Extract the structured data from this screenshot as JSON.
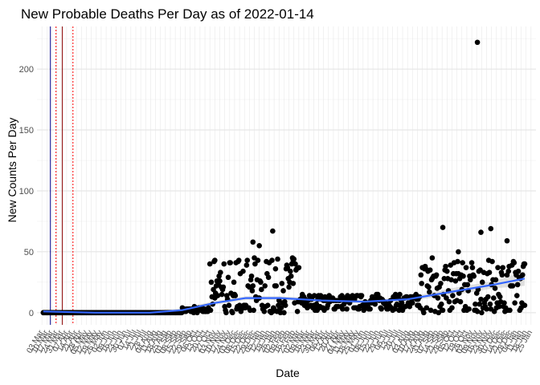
{
  "chart_data": {
    "type": "scatter",
    "title": "New Probable Deaths Per Day as of 2022-01-14",
    "xlabel": "Date",
    "ylabel": "New Counts Per Day",
    "xlim": [
      "2020-02-23",
      "2022-01-30"
    ],
    "ylim": [
      -10,
      235
    ],
    "y_ticks": [
      0,
      50,
      100,
      150,
      200
    ],
    "grid": true,
    "legend": "none",
    "x_tick_labels_note": "dense rotated date labels, largely illegible",
    "vertical_lines": [
      {
        "date": "2020-03-13",
        "color": "#00008b",
        "style": "solid"
      },
      {
        "date": "2020-03-30",
        "color": "#8b0000",
        "style": "solid"
      },
      {
        "date": "2020-03-21",
        "color": "#ff0000",
        "style": "dotted"
      },
      {
        "date": "2020-04-14",
        "color": "#ff0000",
        "style": "dotted"
      }
    ],
    "smooth_color": "#3366ff",
    "smooth_band_color": "#cccccc",
    "key_points": [
      {
        "date": "2020-03-03",
        "value": 0
      },
      {
        "date": "2020-10-03",
        "value": 5
      },
      {
        "date": "2020-11-01",
        "value": 43
      },
      {
        "date": "2020-12-05",
        "value": 43
      },
      {
        "date": "2020-12-25",
        "value": 58
      },
      {
        "date": "2021-01-03",
        "value": 55
      },
      {
        "date": "2021-01-22",
        "value": 67
      },
      {
        "date": "2021-02-20",
        "value": 43
      },
      {
        "date": "2021-03-05",
        "value": 15
      },
      {
        "date": "2021-07-15",
        "value": 15
      },
      {
        "date": "2021-09-05",
        "value": 45
      },
      {
        "date": "2021-09-20",
        "value": 70
      },
      {
        "date": "2021-10-12",
        "value": 50
      },
      {
        "date": "2021-11-08",
        "value": 222
      },
      {
        "date": "2021-11-13",
        "value": 66
      },
      {
        "date": "2021-11-27",
        "value": 69
      },
      {
        "date": "2021-12-20",
        "value": 59
      },
      {
        "date": "2022-01-14",
        "value": 40
      }
    ],
    "smooth_curve": [
      {
        "date": "2020-03-03",
        "value": 1
      },
      {
        "date": "2020-05-15",
        "value": 0
      },
      {
        "date": "2020-08-01",
        "value": 0
      },
      {
        "date": "2020-09-15",
        "value": 2
      },
      {
        "date": "2020-11-01",
        "value": 8
      },
      {
        "date": "2020-12-15",
        "value": 12
      },
      {
        "date": "2021-02-01",
        "value": 12
      },
      {
        "date": "2021-04-01",
        "value": 10
      },
      {
        "date": "2021-06-01",
        "value": 9
      },
      {
        "date": "2021-08-01",
        "value": 11
      },
      {
        "date": "2021-10-01",
        "value": 17
      },
      {
        "date": "2021-12-01",
        "value": 23
      },
      {
        "date": "2022-01-14",
        "value": 28
      }
    ]
  }
}
